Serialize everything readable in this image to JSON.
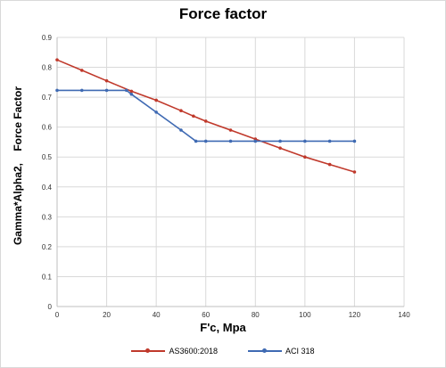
{
  "chart_data": {
    "type": "line",
    "title": "Force factor",
    "xlabel": "F'c, Mpa",
    "ylabel": "Gamma*Alpha2,    Force Factor",
    "xlim": [
      0,
      140
    ],
    "ylim": [
      0,
      0.9
    ],
    "x_ticks": [
      "0",
      "20",
      "40",
      "60",
      "80",
      "100",
      "120",
      "140"
    ],
    "y_ticks": [
      "0",
      "0.1",
      "0.2",
      "0.3",
      "0.4",
      "0.5",
      "0.6",
      "0.7",
      "0.8",
      "0.9"
    ],
    "grid": true,
    "legend_position": "bottom",
    "series": [
      {
        "name": "AS3600:2018",
        "color": "#c0392b",
        "points": [
          [
            0,
            0.825
          ],
          [
            10,
            0.79
          ],
          [
            20,
            0.755
          ],
          [
            30,
            0.72
          ],
          [
            40,
            0.69
          ],
          [
            50,
            0.655
          ],
          [
            55,
            0.637
          ],
          [
            60,
            0.62
          ],
          [
            70,
            0.59
          ],
          [
            80,
            0.56
          ],
          [
            90,
            0.53
          ],
          [
            100,
            0.5
          ],
          [
            110,
            0.475
          ],
          [
            120,
            0.45
          ]
        ]
      },
      {
        "name": "ACI 318",
        "color": "#3f6ab3",
        "points": [
          [
            0,
            0.723
          ],
          [
            10,
            0.723
          ],
          [
            20,
            0.723
          ],
          [
            28,
            0.723
          ],
          [
            30,
            0.71
          ],
          [
            40,
            0.65
          ],
          [
            50,
            0.59
          ],
          [
            56,
            0.553
          ],
          [
            60,
            0.553
          ],
          [
            70,
            0.553
          ],
          [
            80,
            0.553
          ],
          [
            90,
            0.553
          ],
          [
            100,
            0.553
          ],
          [
            110,
            0.553
          ],
          [
            120,
            0.553
          ]
        ]
      }
    ]
  }
}
